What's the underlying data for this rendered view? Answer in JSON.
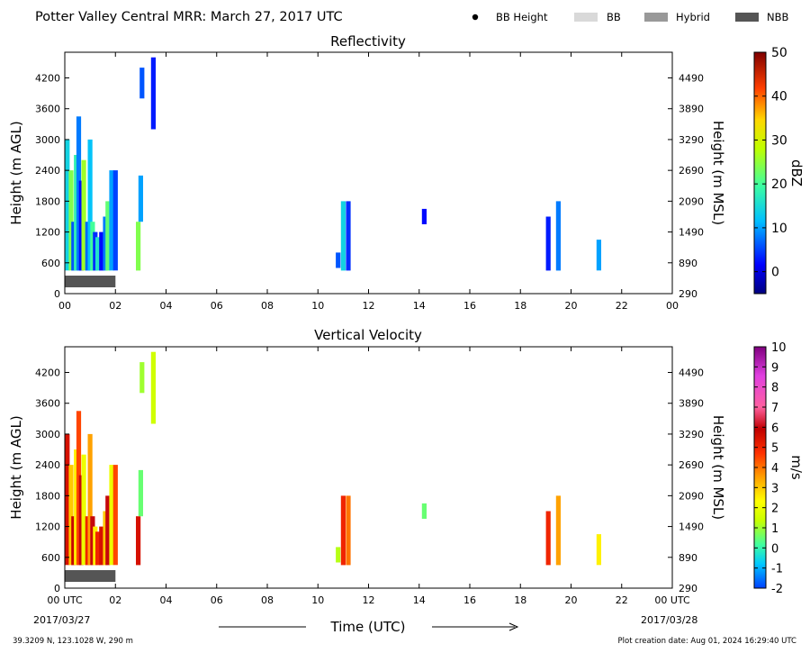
{
  "header": {
    "title": "Potter Valley Central MRR:  March 27, 2017 UTC",
    "legend": [
      {
        "label": "BB Height",
        "kind": "dot",
        "color": "#000000"
      },
      {
        "label": "BB",
        "kind": "swatch",
        "color": "#d9d9d9"
      },
      {
        "label": "Hybrid",
        "kind": "swatch",
        "color": "#999999"
      },
      {
        "label": "NBB",
        "kind": "swatch",
        "color": "#555555"
      }
    ]
  },
  "footer": {
    "location": "39.3209 N, 123.1028 W, 290 m",
    "creation": "Plot creation date: Aug 01, 2024 16:29:40 UTC",
    "xlabel": "Time (UTC)",
    "start_date": "2017/03/27",
    "end_date": "2017/03/28"
  },
  "axes": {
    "ylabel_left": "Height (m AGL)",
    "ylabel_right": "Height (m MSL)",
    "left_ticks": [
      "0",
      "600",
      "1200",
      "1800",
      "2400",
      "3000",
      "3600",
      "4200"
    ],
    "right_ticks": [
      "290",
      "890",
      "1490",
      "2090",
      "2690",
      "3290",
      "3890",
      "4490"
    ],
    "x_ticks_top": [
      "00",
      "02",
      "04",
      "06",
      "08",
      "10",
      "12",
      "14",
      "16",
      "18",
      "20",
      "22",
      "00"
    ],
    "x_ticks_bottom": [
      "00 UTC",
      "02",
      "04",
      "06",
      "08",
      "10",
      "12",
      "14",
      "16",
      "18",
      "20",
      "22",
      "00 UTC"
    ]
  },
  "chart_data": [
    {
      "type": "heatmap",
      "title": "Reflectivity",
      "xlabel": "",
      "ylabel": "Height (m AGL)",
      "y2label": "Height (m MSL)",
      "xlim": [
        0,
        24
      ],
      "ylim": [
        0,
        4700
      ],
      "colorbar": {
        "label": "dBZ",
        "ticks": [
          0,
          10,
          20,
          30,
          40,
          50
        ],
        "range": [
          -5,
          50
        ]
      },
      "band_flags": [
        {
          "x": [
            0,
            2
          ],
          "class": "NBB",
          "color": "#555555"
        }
      ],
      "series": [
        {
          "x": 0.1,
          "h": [
            450,
            3000
          ],
          "v": 14
        },
        {
          "x": 0.25,
          "h": [
            450,
            2400
          ],
          "v": 24
        },
        {
          "x": 0.35,
          "h": [
            450,
            1400
          ],
          "v": 6
        },
        {
          "x": 0.45,
          "h": [
            450,
            2700
          ],
          "v": 18
        },
        {
          "x": 0.55,
          "h": [
            450,
            3450
          ],
          "v": 8
        },
        {
          "x": 0.65,
          "h": [
            450,
            2200
          ],
          "v": 2
        },
        {
          "x": 0.75,
          "h": [
            450,
            2600
          ],
          "v": 26
        },
        {
          "x": 0.9,
          "h": [
            450,
            1400
          ],
          "v": 7
        },
        {
          "x": 1.0,
          "h": [
            450,
            3000
          ],
          "v": 12
        },
        {
          "x": 1.1,
          "h": [
            450,
            1400
          ],
          "v": 20
        },
        {
          "x": 1.2,
          "h": [
            450,
            1200
          ],
          "v": 4
        },
        {
          "x": 1.3,
          "h": [
            450,
            1100
          ],
          "v": 16
        },
        {
          "x": 1.45,
          "h": [
            450,
            1200
          ],
          "v": 2
        },
        {
          "x": 1.6,
          "h": [
            450,
            1500
          ],
          "v": 8
        },
        {
          "x": 1.7,
          "h": [
            450,
            1800
          ],
          "v": 22
        },
        {
          "x": 1.85,
          "h": [
            450,
            2400
          ],
          "v": 10
        },
        {
          "x": 2.0,
          "h": [
            450,
            2400
          ],
          "v": 5
        },
        {
          "x": 2.9,
          "h": [
            450,
            1400
          ],
          "v": 24
        },
        {
          "x": 3.0,
          "h": [
            1400,
            2300
          ],
          "v": 10
        },
        {
          "x": 3.05,
          "h": [
            3800,
            4400
          ],
          "v": 6
        },
        {
          "x": 3.5,
          "h": [
            3200,
            4600
          ],
          "v": 3
        },
        {
          "x": 10.8,
          "h": [
            500,
            800
          ],
          "v": 6
        },
        {
          "x": 11.0,
          "h": [
            450,
            1800
          ],
          "v": 14
        },
        {
          "x": 11.2,
          "h": [
            450,
            1800
          ],
          "v": 4
        },
        {
          "x": 14.2,
          "h": [
            1350,
            1650
          ],
          "v": 2
        },
        {
          "x": 19.1,
          "h": [
            450,
            1500
          ],
          "v": 3
        },
        {
          "x": 19.5,
          "h": [
            450,
            1800
          ],
          "v": 8
        },
        {
          "x": 21.1,
          "h": [
            450,
            1050
          ],
          "v": 10
        }
      ]
    },
    {
      "type": "heatmap",
      "title": "Vertical Velocity",
      "xlabel": "Time (UTC)",
      "ylabel": "Height (m AGL)",
      "y2label": "Height (m MSL)",
      "xlim": [
        0,
        24
      ],
      "ylim": [
        0,
        4700
      ],
      "colorbar": {
        "label": "m/s",
        "ticks": [
          -2,
          -1,
          0,
          1,
          2,
          3,
          4,
          5,
          6,
          7,
          8,
          9,
          10
        ],
        "range": [
          -2,
          10
        ]
      },
      "band_flags": [
        {
          "x": [
            0,
            2
          ],
          "class": "NBB",
          "color": "#555555"
        }
      ],
      "series": [
        {
          "x": 0.1,
          "h": [
            450,
            3000
          ],
          "v": 5.5
        },
        {
          "x": 0.25,
          "h": [
            450,
            2400
          ],
          "v": 3
        },
        {
          "x": 0.35,
          "h": [
            450,
            1400
          ],
          "v": 5.8
        },
        {
          "x": 0.45,
          "h": [
            450,
            2700
          ],
          "v": 2.5
        },
        {
          "x": 0.55,
          "h": [
            450,
            3450
          ],
          "v": 4.5
        },
        {
          "x": 0.65,
          "h": [
            450,
            2200
          ],
          "v": 6
        },
        {
          "x": 0.75,
          "h": [
            450,
            2600
          ],
          "v": 2
        },
        {
          "x": 0.9,
          "h": [
            450,
            1400
          ],
          "v": 5
        },
        {
          "x": 1.0,
          "h": [
            450,
            3000
          ],
          "v": 3.5
        },
        {
          "x": 1.1,
          "h": [
            450,
            1400
          ],
          "v": 6
        },
        {
          "x": 1.2,
          "h": [
            450,
            1200
          ],
          "v": 2.5
        },
        {
          "x": 1.3,
          "h": [
            450,
            1100
          ],
          "v": 5
        },
        {
          "x": 1.45,
          "h": [
            450,
            1200
          ],
          "v": 5.5
        },
        {
          "x": 1.6,
          "h": [
            450,
            1500
          ],
          "v": 3
        },
        {
          "x": 1.7,
          "h": [
            450,
            1800
          ],
          "v": 6
        },
        {
          "x": 1.85,
          "h": [
            450,
            2400
          ],
          "v": 2
        },
        {
          "x": 2.0,
          "h": [
            450,
            2400
          ],
          "v": 4.5
        },
        {
          "x": 2.9,
          "h": [
            450,
            1400
          ],
          "v": 5.5
        },
        {
          "x": 3.0,
          "h": [
            1400,
            2300
          ],
          "v": 0.5
        },
        {
          "x": 3.05,
          "h": [
            3800,
            4400
          ],
          "v": 1
        },
        {
          "x": 3.5,
          "h": [
            3200,
            4600
          ],
          "v": 1.5
        },
        {
          "x": 10.8,
          "h": [
            500,
            800
          ],
          "v": 1.2
        },
        {
          "x": 11.0,
          "h": [
            450,
            1800
          ],
          "v": 5
        },
        {
          "x": 11.2,
          "h": [
            450,
            1800
          ],
          "v": 4
        },
        {
          "x": 14.2,
          "h": [
            1350,
            1650
          ],
          "v": 0.5
        },
        {
          "x": 19.1,
          "h": [
            450,
            1500
          ],
          "v": 5
        },
        {
          "x": 19.5,
          "h": [
            450,
            1800
          ],
          "v": 3.5
        },
        {
          "x": 21.1,
          "h": [
            450,
            1050
          ],
          "v": 2.5
        }
      ]
    }
  ]
}
